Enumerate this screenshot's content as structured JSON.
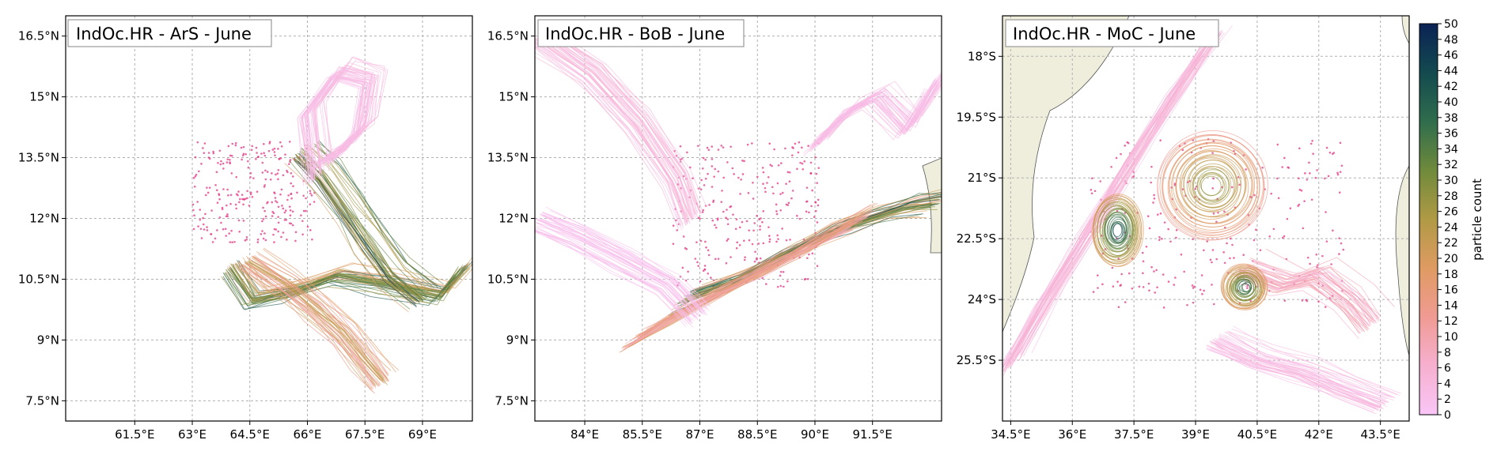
{
  "figure": {
    "colors": {
      "ocean": "#ffffff",
      "land": "#efeedd",
      "grid": "#b0b0b0",
      "frame": "#000000",
      "colormap": [
        "#f9c6f6",
        "#f6b0cf",
        "#f09b93",
        "#df9b62",
        "#b09a45",
        "#6f8a3b",
        "#2f6d4d",
        "#134a4f",
        "#0b2255"
      ]
    }
  },
  "colorbar": {
    "label": "particle count",
    "range": [
      0,
      50
    ],
    "ticks": [
      "0",
      "2",
      "4",
      "6",
      "8",
      "10",
      "12",
      "14",
      "16",
      "18",
      "20",
      "22",
      "24",
      "26",
      "28",
      "30",
      "32",
      "34",
      "36",
      "38",
      "40",
      "42",
      "44",
      "46",
      "48",
      "50"
    ]
  },
  "chart_data": [
    {
      "type": "scatter",
      "title": "IndOc.HR - ArS - June",
      "xlabel": "",
      "ylabel": "",
      "grid": true,
      "xlim": [
        59.7,
        70.3
      ],
      "ylim": [
        7.0,
        17.0
      ],
      "xticks": [
        61.5,
        63,
        64.5,
        66,
        67.5,
        69
      ],
      "yticks": [
        7.5,
        9,
        10.5,
        12,
        13.5,
        15,
        16.5
      ],
      "xtick_labels": [
        "61.5°E",
        "63°E",
        "64.5°E",
        "66°E",
        "67.5°E",
        "69°E"
      ],
      "ytick_labels": [
        "7.5°N",
        "9°N",
        "10.5°N",
        "12°N",
        "13.5°N",
        "15°N",
        "16.5°N"
      ],
      "release_area": {
        "lon": [
          63.0,
          66.2
        ],
        "lat": [
          11.4,
          13.9
        ]
      },
      "trajectory_bundles": [
        {
          "name": "",
          "count_level": 38,
          "lon": [
            64.0,
            64.6,
            65.6,
            66.8,
            68.0,
            69.5,
            70.1
          ],
          "lat": [
            10.8,
            10.0,
            10.2,
            10.6,
            10.4,
            10.1,
            10.8
          ]
        },
        {
          "name": "",
          "count_level": 42,
          "lon": [
            65.8,
            66.4,
            67.0,
            67.6,
            68.2,
            69.0
          ],
          "lat": [
            13.6,
            13.0,
            12.2,
            11.4,
            10.6,
            10.0
          ]
        },
        {
          "name": "",
          "count_level": 22,
          "lon": [
            64.5,
            65.5,
            66.3,
            67.0,
            67.5,
            68.0
          ],
          "lat": [
            11.0,
            10.4,
            9.8,
            9.2,
            8.6,
            8.0
          ]
        },
        {
          "name": "",
          "count_level": 4,
          "lon": [
            66.2,
            66.0,
            66.8,
            67.6,
            67.4,
            66.8,
            66.3
          ],
          "lat": [
            13.0,
            14.6,
            15.6,
            15.4,
            14.2,
            13.6,
            13.4
          ]
        }
      ]
    },
    {
      "type": "scatter",
      "title": "IndOc.HR - BoB - June",
      "xlabel": "",
      "ylabel": "",
      "grid": true,
      "xlim": [
        82.7,
        93.3
      ],
      "ylim": [
        7.0,
        17.0
      ],
      "xticks": [
        84,
        85.5,
        87,
        88.5,
        90,
        91.5
      ],
      "yticks": [
        7.5,
        9,
        10.5,
        12,
        13.5,
        15,
        16.5
      ],
      "xtick_labels": [
        "84°E",
        "85.5°E",
        "87°E",
        "88.5°E",
        "90°E",
        "91.5°E"
      ],
      "ytick_labels": [
        "7.5°N",
        "9°N",
        "10.5°N",
        "12°N",
        "13.5°N",
        "15°N",
        "16.5°N"
      ],
      "release_area": {
        "lon": [
          86.3,
          90.1
        ],
        "lat": [
          10.3,
          13.9
        ]
      },
      "trajectory_bundles": [
        {
          "name": "",
          "count_level": 40,
          "lon": [
            86.6,
            87.8,
            89.0,
            90.2,
            91.4,
            92.4,
            93.2
          ],
          "lat": [
            10.0,
            10.4,
            11.0,
            11.6,
            12.0,
            12.3,
            12.4
          ]
        },
        {
          "name": "",
          "count_level": 18,
          "lon": [
            85.3,
            86.4,
            87.6,
            88.8,
            90.0,
            91.2
          ],
          "lat": [
            9.0,
            9.6,
            10.2,
            10.8,
            11.4,
            12.0
          ]
        },
        {
          "name": "",
          "count_level": 6,
          "lon": [
            82.8,
            84.2,
            85.4,
            86.4,
            86.8
          ],
          "lat": [
            16.5,
            15.6,
            14.4,
            13.0,
            12.0
          ]
        },
        {
          "name": "",
          "count_level": 4,
          "lon": [
            90.0,
            90.8,
            91.6,
            92.4,
            93.2
          ],
          "lat": [
            13.8,
            14.6,
            15.0,
            14.2,
            15.4
          ]
        },
        {
          "name": "",
          "count_level": 2,
          "lon": [
            82.8,
            83.8,
            85.0,
            86.2,
            87.0
          ],
          "lat": [
            12.0,
            11.6,
            11.0,
            10.4,
            9.6
          ]
        }
      ]
    },
    {
      "type": "scatter",
      "title": "IndOc.HR - MoC - June",
      "xlabel": "",
      "ylabel": "",
      "grid": true,
      "xlim": [
        34.3,
        44.2
      ],
      "ylim": [
        -27.0,
        -17.0
      ],
      "xticks": [
        34.5,
        36,
        37.5,
        39,
        40.5,
        42,
        43.5
      ],
      "yticks": [
        -25.5,
        -24,
        -22.5,
        -21,
        -19.5,
        -18
      ],
      "xtick_labels": [
        "34.5°E",
        "36°E",
        "37.5°E",
        "39°E",
        "40.5°E",
        "42°E",
        "43.5°E"
      ],
      "ytick_labels": [
        "25.5°S",
        "24°S",
        "22.5°S",
        "21°S",
        "19.5°S",
        "18°S"
      ],
      "release_area": {
        "lon": [
          36.4,
          42.6
        ],
        "lat": [
          -24.2,
          -20.0
        ]
      },
      "eddies": [
        {
          "lon": 37.1,
          "lat": -22.3,
          "r_lon": 0.55,
          "r_lat": 0.8,
          "count_level": 44
        },
        {
          "lon": 39.4,
          "lat": -21.2,
          "r_lon": 1.2,
          "r_lat": 1.2,
          "count_level": 30
        },
        {
          "lon": 40.2,
          "lat": -23.7,
          "r_lon": 0.5,
          "r_lat": 0.5,
          "count_level": 40
        }
      ],
      "trajectory_bundles": [
        {
          "name": "",
          "count_level": 6,
          "lon": [
            34.5,
            35.4,
            36.5,
            37.6,
            38.6,
            39.4
          ],
          "lat": [
            -25.6,
            -24.0,
            -22.2,
            -20.4,
            -18.8,
            -17.6
          ]
        },
        {
          "name": "",
          "count_level": 10,
          "lon": [
            40.2,
            41.2,
            42.0,
            42.8,
            43.3
          ],
          "lat": [
            -23.2,
            -23.6,
            -23.4,
            -24.0,
            -24.6
          ]
        },
        {
          "name": "",
          "count_level": 4,
          "lon": [
            39.5,
            40.5,
            41.6,
            42.6,
            43.6
          ],
          "lat": [
            -25.0,
            -25.5,
            -25.8,
            -26.2,
            -26.6
          ]
        }
      ]
    }
  ]
}
